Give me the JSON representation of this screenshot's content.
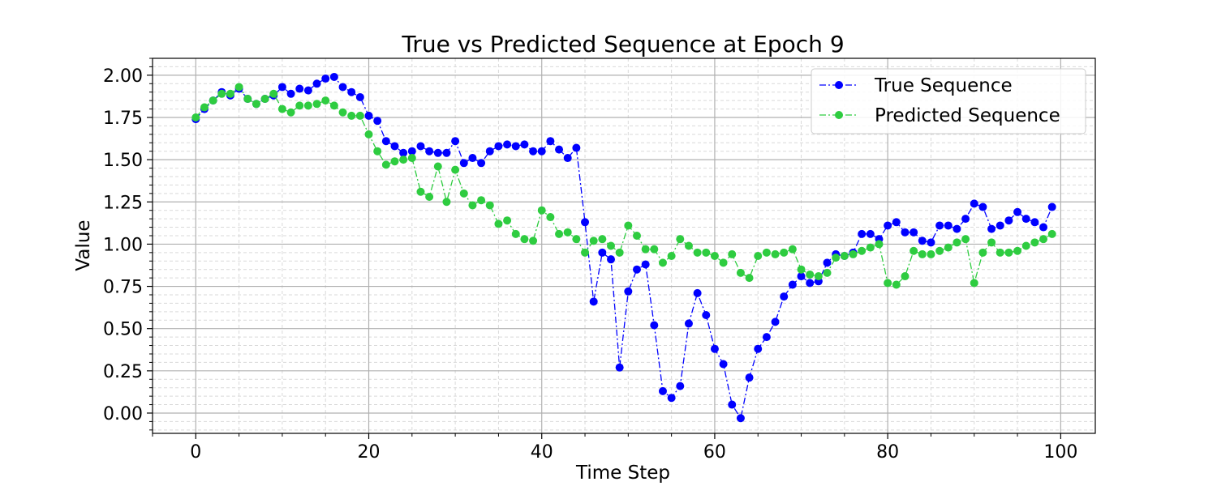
{
  "chart_data": {
    "type": "line",
    "title": "True vs Predicted Sequence at Epoch 9",
    "xlabel": "Time Step",
    "ylabel": "Value",
    "xlim": [
      -5,
      104
    ],
    "ylim": [
      -0.12,
      2.1
    ],
    "xticks": [
      0,
      20,
      40,
      60,
      80,
      100
    ],
    "xtick_labels": [
      "0",
      "20",
      "40",
      "60",
      "80",
      "100"
    ],
    "yticks": [
      0.0,
      0.25,
      0.5,
      0.75,
      1.0,
      1.25,
      1.5,
      1.75,
      2.0
    ],
    "ytick_labels": [
      "0.00",
      "0.25",
      "0.50",
      "0.75",
      "1.00",
      "1.25",
      "1.50",
      "1.75",
      "2.00"
    ],
    "grid": true,
    "minor_grid": true,
    "legend_position": "top-right",
    "series": [
      {
        "name": "True Sequence",
        "color": "#0000ff",
        "line_style": "dash-dot",
        "marker": "circle",
        "values": [
          1.74,
          1.8,
          1.85,
          1.9,
          1.88,
          1.92,
          1.86,
          1.83,
          1.86,
          1.88,
          1.93,
          1.89,
          1.92,
          1.91,
          1.95,
          1.98,
          1.99,
          1.93,
          1.9,
          1.87,
          1.76,
          1.73,
          1.61,
          1.58,
          1.54,
          1.55,
          1.58,
          1.55,
          1.54,
          1.54,
          1.61,
          1.48,
          1.51,
          1.48,
          1.55,
          1.58,
          1.59,
          1.58,
          1.59,
          1.55,
          1.55,
          1.61,
          1.56,
          1.51,
          1.57,
          1.13,
          0.66,
          0.95,
          0.91,
          0.27,
          0.72,
          0.85,
          0.88,
          0.52,
          0.13,
          0.09,
          0.16,
          0.53,
          0.71,
          0.58,
          0.38,
          0.29,
          0.05,
          -0.03,
          0.21,
          0.38,
          0.45,
          0.54,
          0.69,
          0.76,
          0.81,
          0.77,
          0.78,
          0.89,
          0.94,
          0.93,
          0.95,
          1.06,
          1.06,
          1.03,
          1.11,
          1.13,
          1.07,
          1.07,
          1.02,
          1.01,
          1.11,
          1.11,
          1.09,
          1.15,
          1.24,
          1.22,
          1.09,
          1.11,
          1.14,
          1.19,
          1.15,
          1.13,
          1.1,
          1.22
        ]
      },
      {
        "name": "Predicted Sequence",
        "color": "#2ecc40",
        "line_style": "dash-dot",
        "marker": "circle",
        "values": [
          1.75,
          1.81,
          1.85,
          1.89,
          1.89,
          1.93,
          1.86,
          1.83,
          1.86,
          1.89,
          1.8,
          1.78,
          1.82,
          1.82,
          1.83,
          1.85,
          1.82,
          1.78,
          1.76,
          1.76,
          1.65,
          1.55,
          1.47,
          1.49,
          1.5,
          1.51,
          1.31,
          1.28,
          1.46,
          1.25,
          1.44,
          1.3,
          1.23,
          1.26,
          1.23,
          1.12,
          1.14,
          1.06,
          1.03,
          1.02,
          1.2,
          1.16,
          1.06,
          1.07,
          1.03,
          0.95,
          1.02,
          1.03,
          0.99,
          0.95,
          1.11,
          1.05,
          0.97,
          0.97,
          0.89,
          0.93,
          1.03,
          0.99,
          0.95,
          0.95,
          0.93,
          0.89,
          0.94,
          0.83,
          0.8,
          0.93,
          0.95,
          0.94,
          0.95,
          0.97,
          0.85,
          0.82,
          0.81,
          0.83,
          0.92,
          0.93,
          0.94,
          0.96,
          0.98,
          1.0,
          0.77,
          0.76,
          0.81,
          0.96,
          0.94,
          0.94,
          0.96,
          0.98,
          1.01,
          1.03,
          0.77,
          0.95,
          1.01,
          0.95,
          0.95,
          0.96,
          0.99,
          1.01,
          1.03,
          1.06
        ]
      }
    ]
  }
}
